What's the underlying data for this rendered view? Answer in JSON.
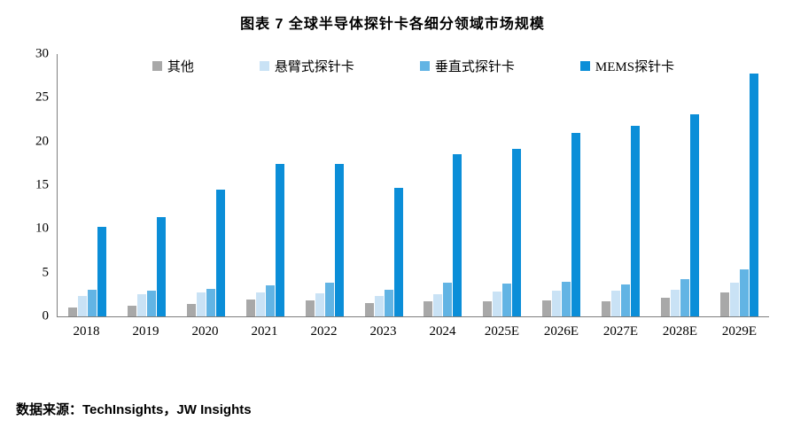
{
  "source": "数据来源：TechInsights，JW Insights",
  "chart_data": {
    "type": "bar",
    "title": "图表 7 全球半导体探针卡各细分领域市场规模",
    "categories": [
      "2018",
      "2019",
      "2020",
      "2021",
      "2022",
      "2023",
      "2024",
      "2025E",
      "2026E",
      "2027E",
      "2028E",
      "2029E"
    ],
    "series": [
      {
        "name": "其他",
        "color": "#a8a8a8",
        "values": [
          1.0,
          1.2,
          1.4,
          1.9,
          1.8,
          1.5,
          1.7,
          1.7,
          1.8,
          1.7,
          2.1,
          2.7
        ]
      },
      {
        "name": "悬臂式探针卡",
        "color": "#c9e2f5",
        "values": [
          2.3,
          2.5,
          2.7,
          2.7,
          2.6,
          2.3,
          2.5,
          2.8,
          2.9,
          2.9,
          3.0,
          3.9
        ]
      },
      {
        "name": "垂直式探针卡",
        "color": "#62b4e4",
        "values": [
          3.0,
          2.9,
          3.1,
          3.5,
          3.9,
          3.0,
          3.9,
          3.8,
          4.0,
          3.7,
          4.3,
          5.4
        ]
      },
      {
        "name": "MEMS探针卡",
        "color": "#0b8ed8",
        "values": [
          10.2,
          11.4,
          14.5,
          17.4,
          17.4,
          14.7,
          18.5,
          19.2,
          21.0,
          21.8,
          23.1,
          27.8
        ]
      }
    ],
    "ylim": [
      0,
      30
    ],
    "yticks": [
      0,
      5,
      10,
      15,
      20,
      25,
      30
    ],
    "grid": false,
    "legend_position": "top-inside",
    "xlabel": "",
    "ylabel": ""
  }
}
